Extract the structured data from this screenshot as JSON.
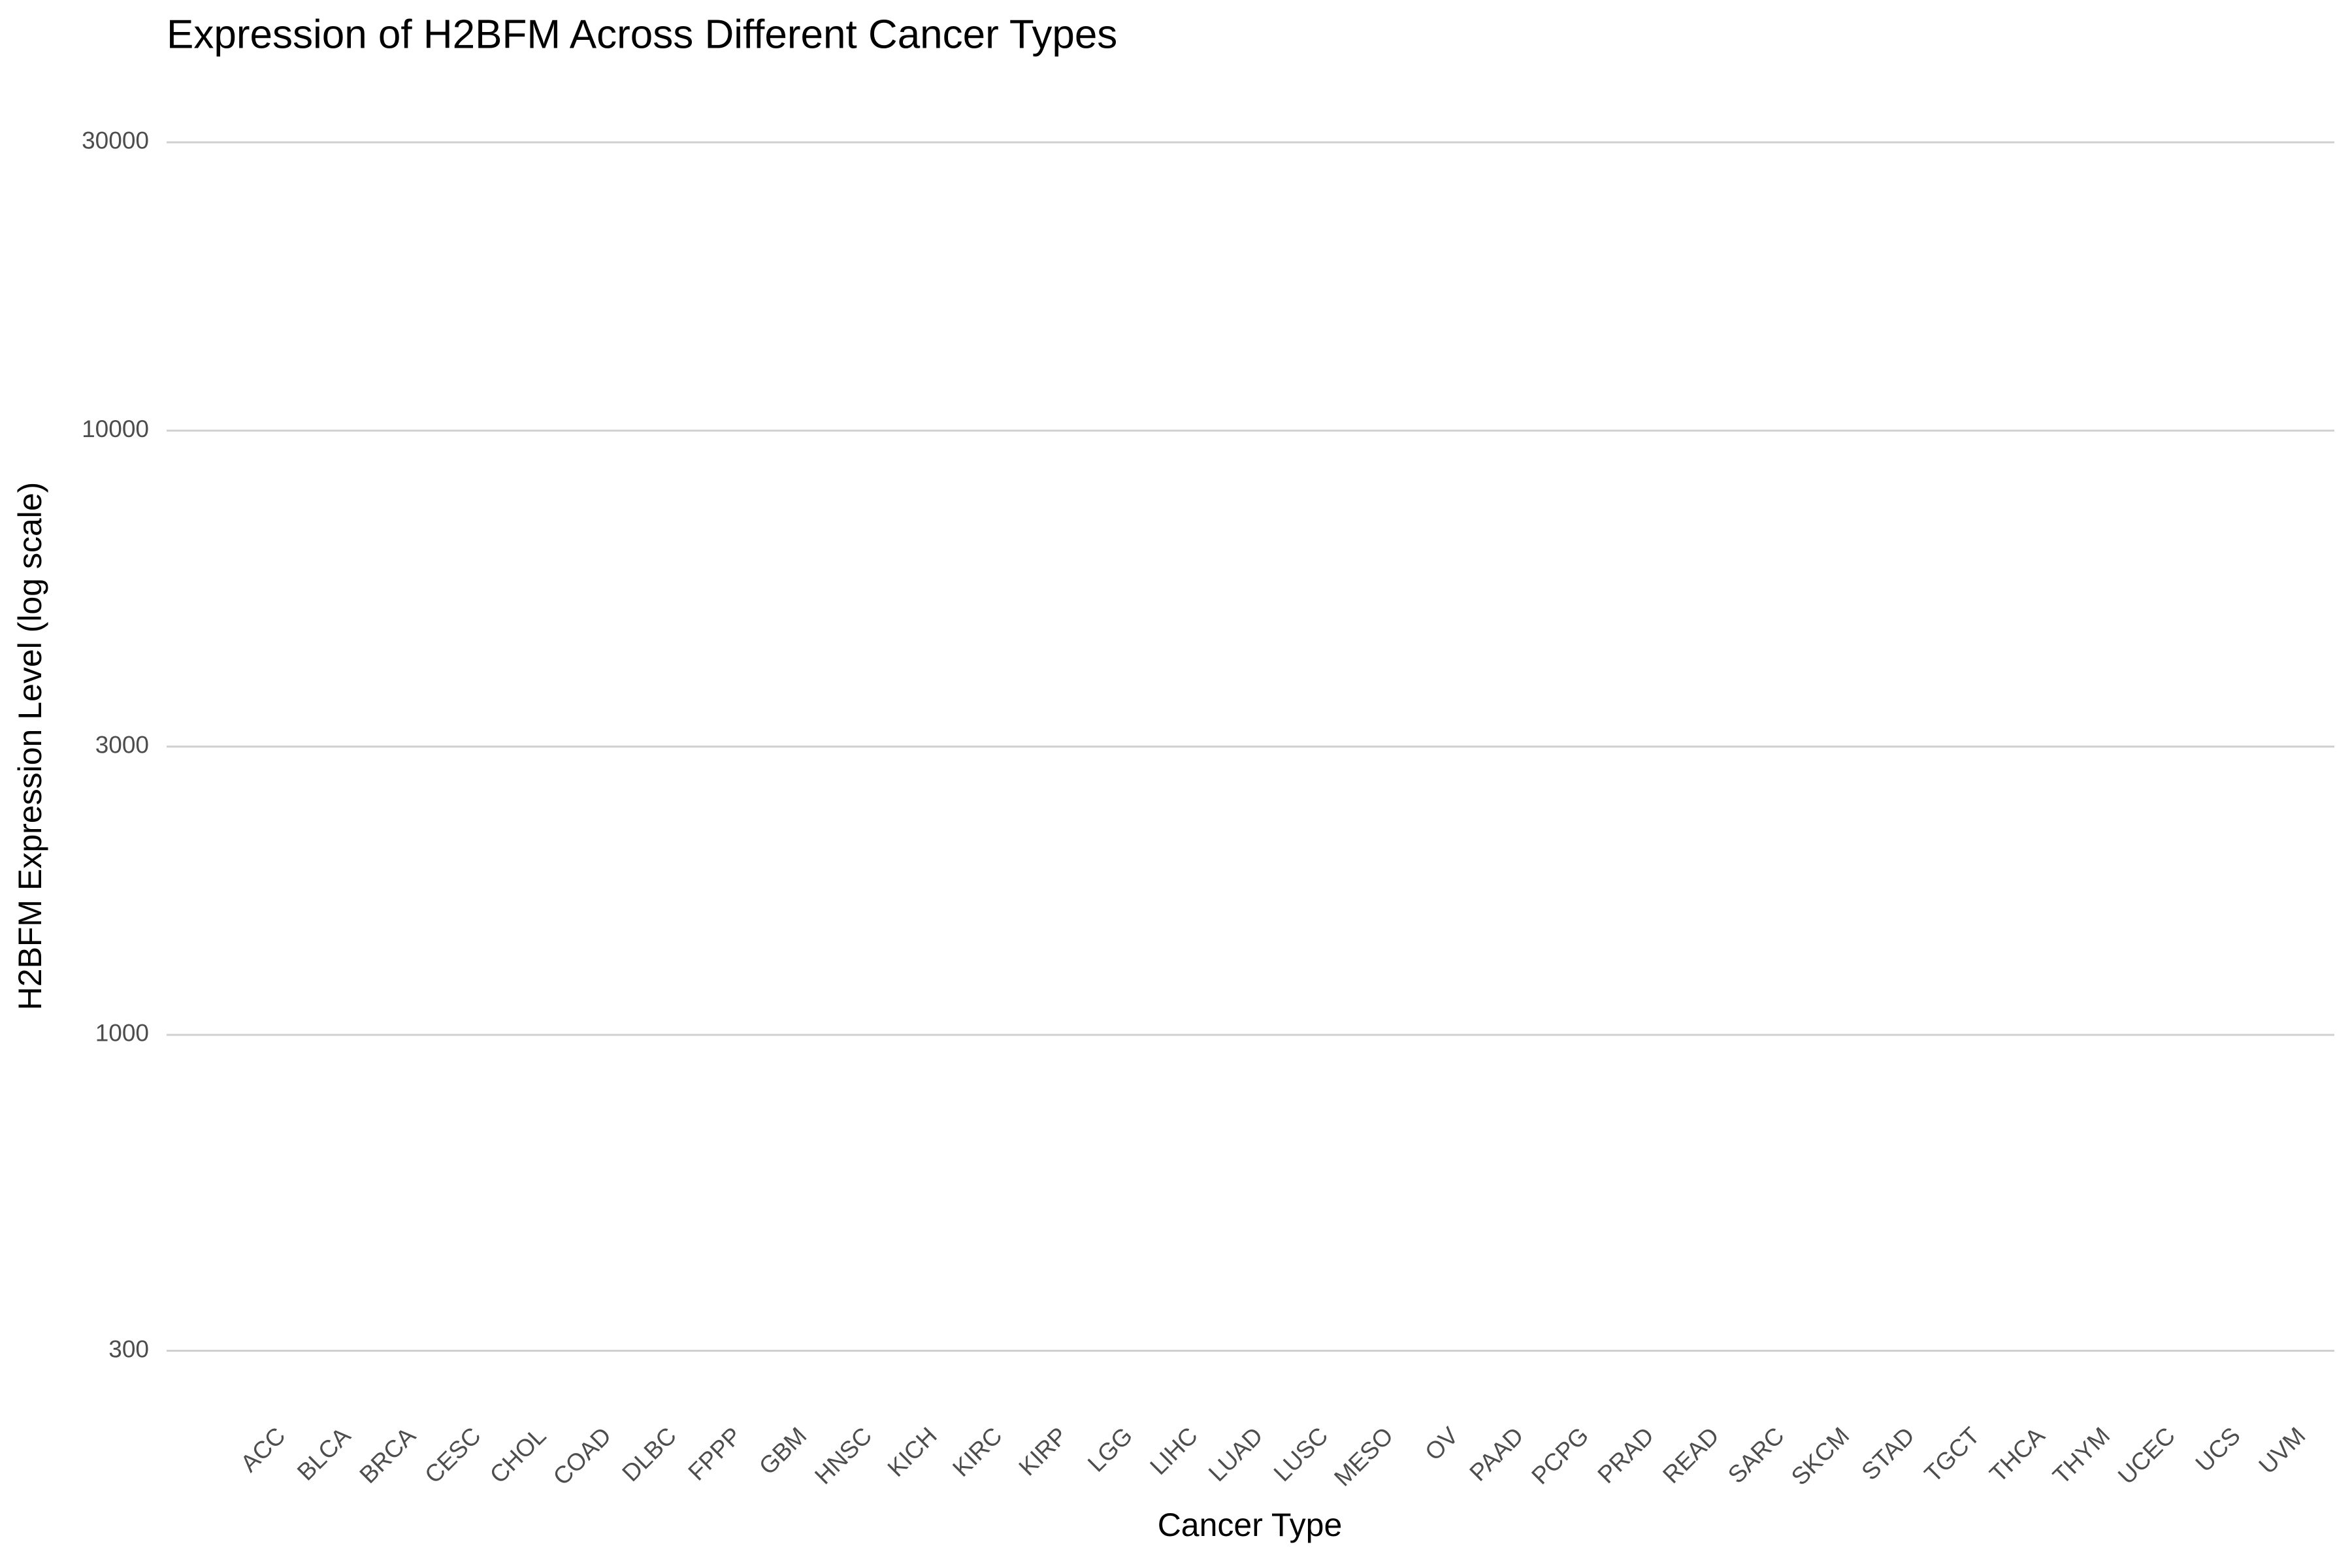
{
  "chart_data": {
    "type": "box",
    "title": "Expression of H2BFM Across Different Cancer Types",
    "x_label": "Cancer Type",
    "y_label": "H2BFM Expression Level (log scale)",
    "categories": [
      "ACC",
      "BLCA",
      "BRCA",
      "CESC",
      "CHOL",
      "COAD",
      "DLBC",
      "FPPP",
      "GBM",
      "HNSC",
      "KICH",
      "KIRC",
      "KIRP",
      "LGG",
      "LIHC",
      "LUAD",
      "LUSC",
      "MESO",
      "OV",
      "PAAD",
      "PCPG",
      "PRAD",
      "READ",
      "SARC",
      "SKCM",
      "STAD",
      "TGCT",
      "THCA",
      "THYM",
      "UCEC",
      "UCS",
      "UVM"
    ],
    "ylim": [
      260,
      36600
    ],
    "yticks": [
      300,
      1000,
      3000,
      10000,
      30000
    ],
    "log_y": true,
    "grid": true
  }
}
